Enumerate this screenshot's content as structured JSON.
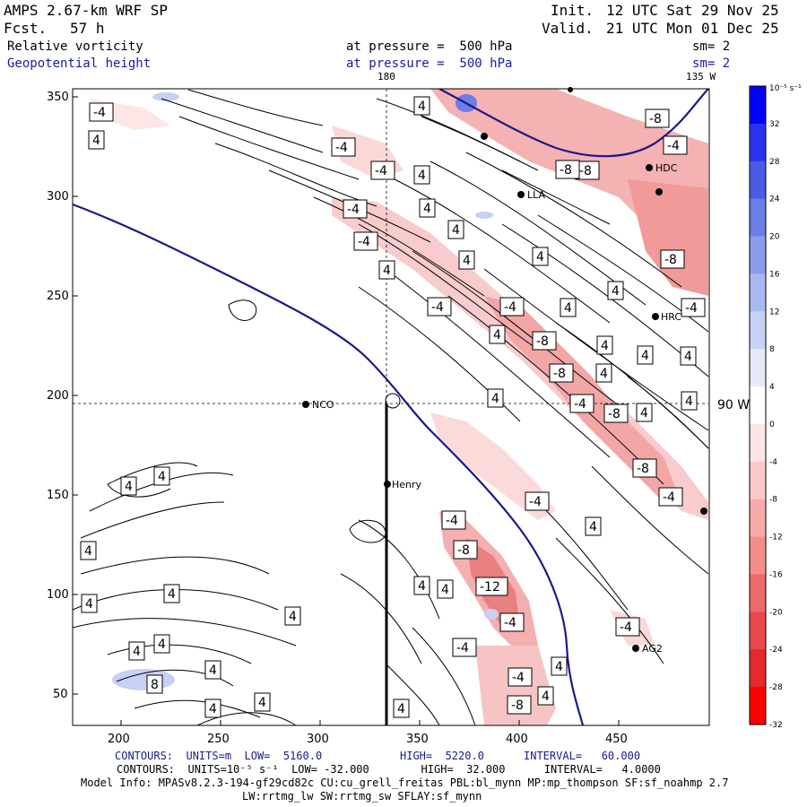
{
  "header": {
    "model": "AMPS 2.67-km WRF SP",
    "init_label": "Init.",
    "init_time": "12 UTC Sat 29 Nov 25",
    "fcst_label": "Fcst.",
    "fcst_hours": "57 h",
    "valid_label": "Valid.",
    "valid_time": "21 UTC Mon 01 Dec 25",
    "field1_name": "Relative vorticity",
    "field1_level": "at pressure =  500 hPa",
    "field1_sm": "sm= 2",
    "field2_name": "Geopotential height",
    "field2_level": "at pressure =  500 hPa",
    "field2_sm": "sm= 2"
  },
  "map": {
    "meridian_top": "180",
    "meridian_right": "135 W",
    "meridian_side": "90 W",
    "x_ticks": [
      "200",
      "250",
      "300",
      "350",
      "400",
      "450"
    ],
    "y_ticks": [
      "350",
      "300",
      "250",
      "200",
      "150",
      "100",
      "50"
    ],
    "stations": [
      {
        "name": "NCO"
      },
      {
        "name": "Henry"
      },
      {
        "name": "HRC"
      },
      {
        "name": "AG2"
      },
      {
        "name": "HDC"
      },
      {
        "name": "LLA"
      }
    ],
    "contour_labels": [
      "-4",
      "4",
      "-8",
      "-12",
      "8"
    ]
  },
  "colorbar": {
    "unit": "10⁻⁵ s⁻¹",
    "labels": [
      "32",
      "28",
      "24",
      "20",
      "16",
      "12",
      "8",
      "4",
      "0",
      "-4",
      "-8",
      "-12",
      "-16",
      "-20",
      "-24",
      "-28",
      "-32"
    ],
    "colors": [
      "#0000ff",
      "#2a32f0",
      "#4a5ce6",
      "#6a7ee6",
      "#8c9cec",
      "#aab8f2",
      "#c8d2f6",
      "#e4eafa",
      "#ffffff",
      "#fde4e4",
      "#fbc8c8",
      "#f8aaaa",
      "#f48c8c",
      "#f06a6a",
      "#ea4a4a",
      "#e42a2a",
      "#ff0000"
    ]
  },
  "footer": {
    "line1_prefix": "CONTOURS:  UNITS=m  LOW=  5160.0",
    "line1_high": "HIGH=  5220.0",
    "line1_interval": "INTERVAL=   60.000",
    "line2": "CONTOURS:  UNITS=10⁻⁵ s⁻¹  LOW= -32.000        HIGH=  32.000      INTERVAL=   4.0000",
    "line3": "Model Info: MPASv8.2.3-194-gf29cd82c CU:cu_grell_freitas PBL:bl_mynn MP:mp_thompson SF:sf_noahmp 2.7",
    "line4": "LW:rrtmg_lw SW:rrtmg_sw SFLAY:sf_mynn"
  },
  "colors": {
    "height_contour": "#1a1a8c",
    "pos_fill": "#f4b4b4",
    "neg_fill": "#c8d0f4"
  }
}
